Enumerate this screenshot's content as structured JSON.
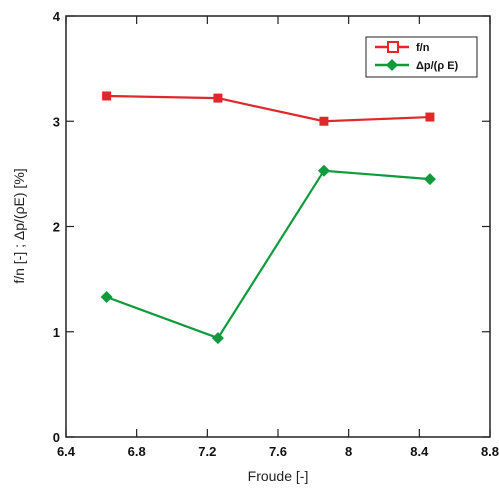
{
  "chart_data": {
    "type": "line",
    "xlabel": "Froude [-]",
    "ylabel": "f/n [-] ; Δp/(ρE) [%]",
    "xlim": [
      6.4,
      8.8
    ],
    "ylim": [
      0,
      4
    ],
    "xticks": [
      6.4,
      6.8,
      7.2,
      7.6,
      8,
      8.4,
      8.8
    ],
    "xtick_labels": [
      "6.4",
      "6.8",
      "7.2",
      "7.6",
      "8",
      "8.4",
      "8.8"
    ],
    "yticks": [
      0,
      1,
      2,
      3,
      4
    ],
    "ytick_labels": [
      "0",
      "1",
      "2",
      "3",
      "4"
    ],
    "grid": false,
    "legend_position": "top-right",
    "x": [
      6.63,
      7.26,
      7.86,
      8.46
    ],
    "series": [
      {
        "name": "f/n",
        "marker": "square",
        "color": "#e0282b",
        "values": [
          3.24,
          3.22,
          3.0,
          3.04
        ]
      },
      {
        "name": "Δp/(ρ E)",
        "marker": "diamond",
        "color": "#0f9a3c",
        "values": [
          1.33,
          0.94,
          2.53,
          2.45
        ]
      }
    ]
  }
}
